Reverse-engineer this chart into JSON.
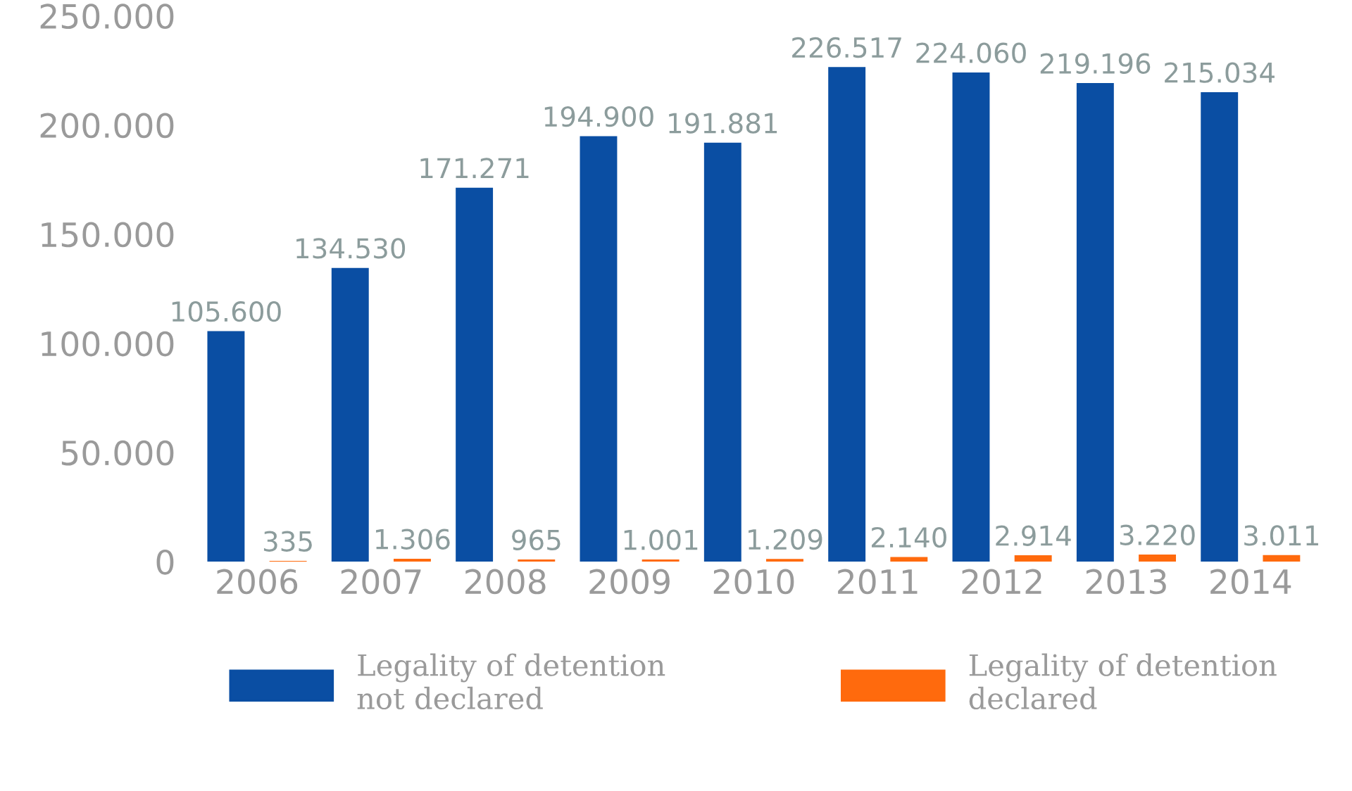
{
  "chart_data": {
    "type": "bar",
    "categories": [
      "2006",
      "2007",
      "2008",
      "2009",
      "2010",
      "2011",
      "2012",
      "2013",
      "2014"
    ],
    "series": [
      {
        "name": "Legality of detention\nnot declared",
        "color": "#0a4ea3",
        "values": [
          105600,
          134530,
          171271,
          194900,
          191881,
          226517,
          224060,
          219196,
          215034
        ],
        "value_labels": [
          "105.600",
          "134.530",
          "171.271",
          "194.900",
          "191.881",
          "226.517",
          "224.060",
          "219.196",
          "215.034"
        ]
      },
      {
        "name": "Legality of detention\ndeclared",
        "color": "#ff6a0d",
        "values": [
          335,
          1306,
          965,
          1001,
          1209,
          2140,
          2914,
          3220,
          3011
        ],
        "value_labels": [
          "335",
          "1.306",
          "965",
          "1.001",
          "1.209",
          "2.140",
          "2.914",
          "3.220",
          "3.011"
        ]
      }
    ],
    "ylim": [
      0,
      250000
    ],
    "yticks": [
      {
        "value": 0,
        "label": "0"
      },
      {
        "value": 50000,
        "label": "50.000"
      },
      {
        "value": 100000,
        "label": "100.000"
      },
      {
        "value": 150000,
        "label": "150.000"
      },
      {
        "value": 200000,
        "label": "200.000"
      },
      {
        "value": 250000,
        "label": "250.000"
      }
    ],
    "grid": false,
    "legend": "bottom"
  }
}
